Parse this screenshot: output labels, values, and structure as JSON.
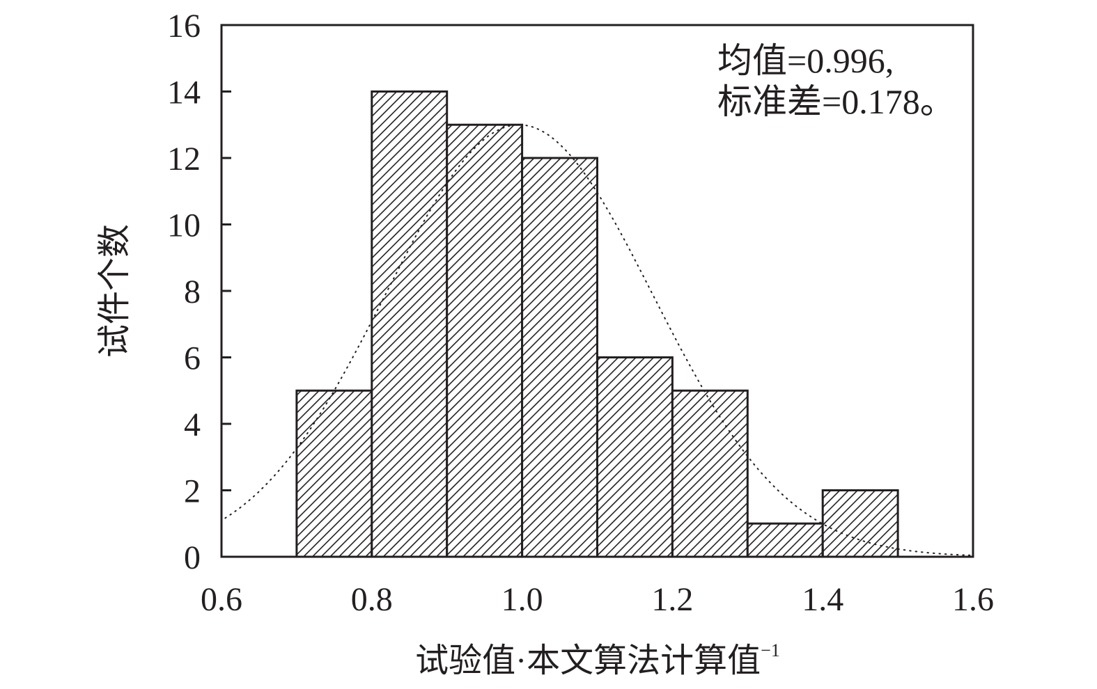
{
  "chart_data": {
    "type": "bar",
    "subtype": "histogram",
    "bins": [
      [
        0.7,
        0.8
      ],
      [
        0.8,
        0.9
      ],
      [
        0.9,
        1.0
      ],
      [
        1.0,
        1.1
      ],
      [
        1.1,
        1.2
      ],
      [
        1.2,
        1.3
      ],
      [
        1.3,
        1.4
      ],
      [
        1.4,
        1.5
      ]
    ],
    "values": [
      5,
      14,
      13,
      12,
      6,
      5,
      1,
      2
    ],
    "normal_curve": {
      "mean": 0.996,
      "std": 0.178,
      "total_count": 58,
      "bin_width": 0.1
    },
    "xlabel": "试验值·本文算法计算值",
    "xlabel_superscript": "−1",
    "ylabel": "试件个数",
    "xlim": [
      0.6,
      1.6
    ],
    "ylim": [
      0,
      16
    ],
    "xticks": [
      "0.6",
      "0.8",
      "1.0",
      "1.2",
      "1.4",
      "1.6"
    ],
    "yticks": [
      "0",
      "2",
      "4",
      "6",
      "8",
      "10",
      "12",
      "14",
      "16"
    ],
    "annotation": [
      "均值=0.996,",
      "标准差=0.178。"
    ],
    "colors": {
      "ink": "#231f20",
      "background": "#ffffff"
    }
  }
}
